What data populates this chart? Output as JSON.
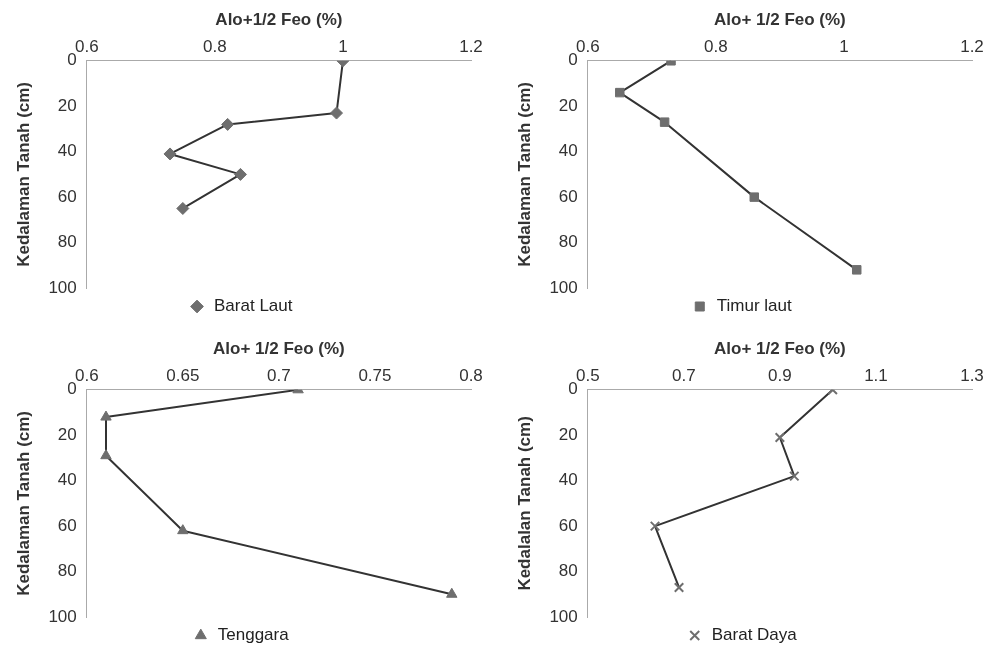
{
  "chart_data": [
    {
      "type": "line",
      "xlabel": "Alo+1/2 Feo (%)",
      "ylabel": "Kedalaman Tanah (cm)",
      "xlim": [
        0.6,
        1.2
      ],
      "xticks": [
        0.6,
        0.8,
        1,
        1.2
      ],
      "ylim": [
        100,
        0
      ],
      "yticks": [
        0,
        20,
        40,
        60,
        80,
        100
      ],
      "grid": false,
      "legend": "bottom",
      "marker": "diamond",
      "series": [
        {
          "name": "Barat Laut",
          "color": "#6e6e6e",
          "x": [
            1.0,
            0.99,
            0.82,
            0.73,
            0.84,
            0.75
          ],
          "values": [
            0,
            23,
            28,
            41,
            50,
            65
          ]
        }
      ]
    },
    {
      "type": "line",
      "xlabel": "Alo+ 1/2 Feo (%)",
      "ylabel": "Kedalaman Tanah (cm)",
      "xlim": [
        0.6,
        1.2
      ],
      "xticks": [
        0.6,
        0.8,
        1,
        1.2
      ],
      "ylim": [
        100,
        0
      ],
      "yticks": [
        0,
        20,
        40,
        60,
        80,
        100
      ],
      "grid": false,
      "legend": "bottom",
      "marker": "square",
      "series": [
        {
          "name": "Timur laut",
          "color": "#6e6e6e",
          "x": [
            0.73,
            0.65,
            0.72,
            0.86,
            1.02
          ],
          "values": [
            0,
            14,
            27,
            60,
            92
          ]
        }
      ]
    },
    {
      "type": "line",
      "xlabel": "Alo+ 1/2 Feo (%)",
      "ylabel": "Kedalaman Tanah (cm)",
      "xlim": [
        0.6,
        0.8
      ],
      "xticks": [
        0.6,
        0.65,
        0.7,
        0.75,
        0.8
      ],
      "ylim": [
        100,
        0
      ],
      "yticks": [
        0,
        20,
        40,
        60,
        80,
        100
      ],
      "grid": false,
      "legend": "bottom",
      "marker": "triangle",
      "series": [
        {
          "name": "Tenggara",
          "color": "#6e6e6e",
          "x": [
            0.71,
            0.61,
            0.61,
            0.65,
            0.79
          ],
          "values": [
            0,
            12,
            29,
            62,
            90
          ]
        }
      ]
    },
    {
      "type": "line",
      "xlabel": "Alo+ 1/2 Feo (%)",
      "ylabel": "Kedalalan Tanah (cm)",
      "xlim": [
        0.5,
        1.3
      ],
      "xticks": [
        0.5,
        0.7,
        0.9,
        1.1,
        1.3
      ],
      "ylim": [
        100,
        0
      ],
      "yticks": [
        0,
        20,
        40,
        60,
        80,
        100
      ],
      "grid": false,
      "legend": "bottom",
      "marker": "cross",
      "series": [
        {
          "name": "Barat Daya",
          "color": "#6e6e6e",
          "x": [
            1.01,
            0.9,
            0.93,
            0.64,
            0.69
          ],
          "values": [
            0,
            21,
            38,
            60,
            87
          ]
        }
      ]
    }
  ]
}
